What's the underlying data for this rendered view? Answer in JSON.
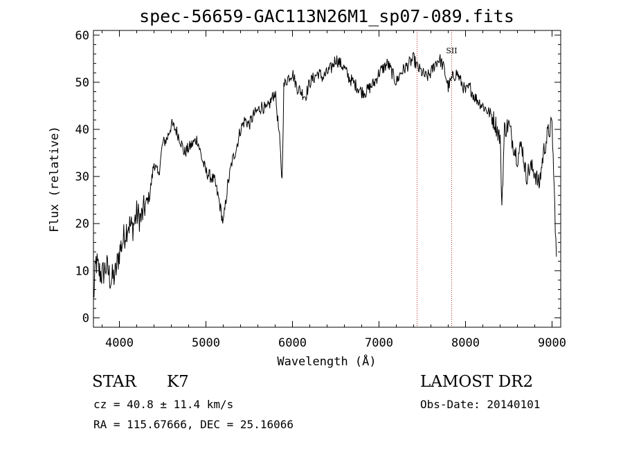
{
  "chart_data": {
    "type": "line",
    "title": "spec-56659-GAC113N26M1_sp07-089.fits",
    "xlabel": "Wavelength (Å)",
    "ylabel": "Flux (relative)",
    "xlim": [
      3700,
      9100
    ],
    "ylim": [
      -2,
      61
    ],
    "xticks": [
      4000,
      5000,
      6000,
      7000,
      8000,
      9000
    ],
    "yticks": [
      0,
      10,
      20,
      30,
      40,
      50,
      60
    ],
    "grid": false,
    "series": [
      {
        "x": [
          3700,
          3730,
          3760,
          3800,
          3850,
          3900,
          3950,
          4000,
          4050,
          4100,
          4150,
          4200,
          4250,
          4300,
          4350,
          4400,
          4450,
          4500,
          4550,
          4600,
          4650,
          4700,
          4750,
          4800,
          4850,
          4900,
          4950,
          5000,
          5050,
          5100,
          5150,
          5200,
          5250,
          5300,
          5350,
          5400,
          5450,
          5500,
          5550,
          5600,
          5650,
          5700,
          5750,
          5800,
          5850,
          5880,
          5900,
          5920,
          5950,
          6000,
          6050,
          6100,
          6150,
          6200,
          6250,
          6300,
          6350,
          6400,
          6450,
          6500,
          6550,
          6600,
          6650,
          6700,
          6750,
          6800,
          6850,
          6900,
          6950,
          7000,
          7050,
          7100,
          7150,
          7200,
          7250,
          7300,
          7350,
          7400,
          7450,
          7500,
          7550,
          7600,
          7650,
          7700,
          7750,
          7800,
          7850,
          7900,
          7950,
          8000,
          8050,
          8100,
          8150,
          8200,
          8250,
          8300,
          8350,
          8400,
          8420,
          8450,
          8500,
          8550,
          8600,
          8650,
          8700,
          8750,
          8800,
          8850,
          8900,
          8950,
          9000,
          9050
        ],
        "y": [
          4,
          12,
          10,
          9,
          11,
          8,
          9,
          14,
          17,
          20,
          19,
          22,
          21,
          24,
          26,
          33,
          30,
          37,
          38,
          41,
          40,
          38,
          35,
          36,
          37,
          38,
          34,
          31,
          30,
          29,
          25,
          20,
          28,
          33,
          36,
          40,
          42,
          41,
          43,
          44,
          45,
          44,
          46,
          48,
          38,
          29,
          49,
          50,
          51,
          52,
          49,
          48,
          47,
          50,
          51,
          52,
          51,
          52,
          53,
          55,
          54,
          53,
          51,
          50,
          49,
          48,
          48,
          49,
          50,
          52,
          53,
          54,
          52,
          50,
          52,
          53,
          54,
          55,
          53,
          52,
          51,
          52,
          54,
          55,
          53,
          49,
          51,
          52,
          50,
          48,
          49,
          47,
          46,
          45,
          44,
          43,
          41,
          38,
          24,
          40,
          41,
          37,
          34,
          37,
          30,
          32,
          31,
          28,
          35,
          39,
          41,
          13
        ]
      }
    ],
    "vlines": [
      {
        "x": 7440,
        "label": ""
      },
      {
        "x": 7840,
        "label": "SII"
      }
    ]
  },
  "info": {
    "class": "STAR",
    "subclass": "K7",
    "cz": "cz = 40.8 ± 11.4 km/s",
    "radec": "RA = 115.67666, DEC =  25.16066",
    "survey": "LAMOST DR2",
    "obsdate": "Obs-Date: 20140101"
  }
}
